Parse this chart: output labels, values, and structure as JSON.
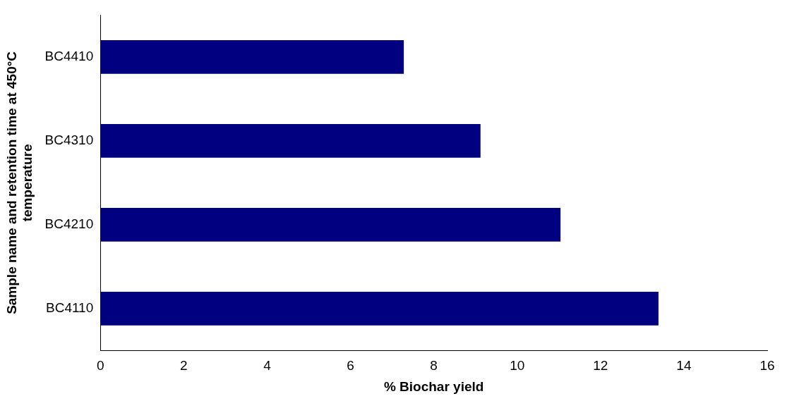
{
  "chart_data": {
    "type": "bar",
    "orientation": "horizontal",
    "xlabel": "% Biochar yield",
    "ylabel": "Sample name and retention time at 450°C temperature",
    "categories": [
      "BC4410",
      "BC4310",
      "BC4210",
      "BC4110"
    ],
    "values": [
      7.28,
      9.12,
      11.04,
      13.39
    ],
    "color": "#000080",
    "xlim": [
      0,
      16
    ],
    "xticks": [
      0,
      2,
      4,
      6,
      8,
      10,
      12,
      14,
      16
    ],
    "grid": false,
    "legend": false
  }
}
